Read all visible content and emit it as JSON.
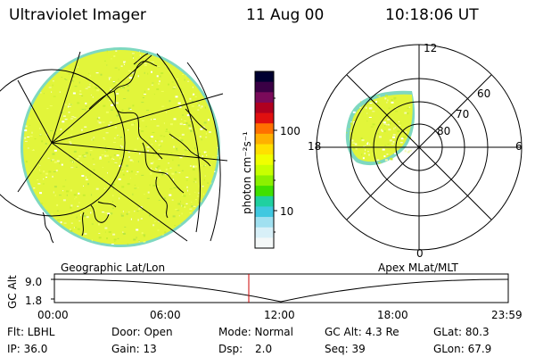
{
  "header": {
    "title": "Ultraviolet Imager",
    "date": "11 Aug 00",
    "time": "10:18:06 UT"
  },
  "colorbar": {
    "unit_label": "photon cm⁻²s⁻¹",
    "ticks": [
      "100",
      "10"
    ],
    "colors": [
      "#000030",
      "#3a0045",
      "#7a0a5a",
      "#b00020",
      "#e01010",
      "#ff7000",
      "#ffb000",
      "#ffe000",
      "#f0ff00",
      "#c8ff00",
      "#8cf000",
      "#40e000",
      "#20d0a0",
      "#40c8e0",
      "#a0e0f0",
      "#d8f0f8",
      "#f4f8f8"
    ]
  },
  "polar_plot": {
    "labels_clock": [
      "12",
      "18",
      "6",
      "0"
    ],
    "labels_lat": [
      "60",
      "70",
      "80"
    ]
  },
  "altitude_panel": {
    "left_label": "Geographic Lat/Lon",
    "right_label": "Apex MLat/MLT",
    "axis_label": "GC Alt",
    "y_ticks": [
      "9.0",
      "1.8"
    ],
    "x_ticks": [
      "00:00",
      "06:00",
      "12:00",
      "18:00",
      "23:59"
    ]
  },
  "info": {
    "row1": {
      "filter": "Flt: LBHL",
      "door": "Door: Open",
      "mode": "Mode: Normal",
      "gc_alt": "GC Alt: 4.3 Re",
      "glat": "GLat: 80.3"
    },
    "row2": {
      "ip": "IP: 36.0",
      "gain": "Gain: 13",
      "dsp_label": "Dsp:",
      "dsp_value": "2.0",
      "seq": "Seq: 39",
      "glon": "GLon: 67.9"
    }
  },
  "palette": {
    "disk_fill": "#e2f53a",
    "disk_edge": "#7ed8c0",
    "coast": "#000000",
    "marker": "#cc0000"
  }
}
